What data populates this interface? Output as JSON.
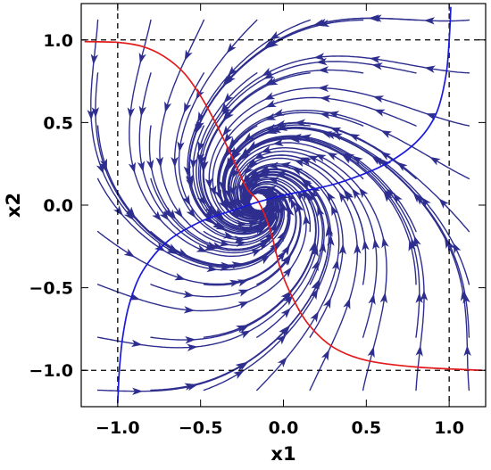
{
  "chart_data": {
    "type": "streamplot",
    "title": "",
    "xlabel": "x1",
    "ylabel": "x2",
    "xlim": [
      -1.22,
      1.22
    ],
    "ylim": [
      -1.22,
      1.22
    ],
    "x_ticks": [
      -1.0,
      -0.5,
      0.0,
      0.5,
      1.0
    ],
    "y_ticks": [
      -1.0,
      -0.5,
      0.0,
      0.5,
      1.0
    ],
    "x_tick_labels": [
      "−1.0",
      "−0.5",
      "0.0",
      "0.5",
      "1.0"
    ],
    "y_tick_labels": [
      "−1.0",
      "−0.5",
      "0.0",
      "0.5",
      "1.0"
    ],
    "grid": false,
    "equilibrium": [
      -0.15,
      0.02
    ],
    "reference_lines": {
      "vertical": [
        -1.0,
        1.0
      ],
      "horizontal": [
        -1.0,
        1.0
      ],
      "style": "dashed",
      "color": "#000000"
    },
    "stream_color": "#2e2e8f",
    "curves": [
      {
        "color": "#e31a1c",
        "points": [
          [
            -1.2,
            0.99
          ],
          [
            -1.0,
            0.985
          ],
          [
            -0.85,
            0.96
          ],
          [
            -0.72,
            0.9
          ],
          [
            -0.6,
            0.8
          ],
          [
            -0.5,
            0.66
          ],
          [
            -0.4,
            0.48
          ],
          [
            -0.3,
            0.27
          ],
          [
            -0.22,
            0.1
          ],
          [
            -0.15,
            0.02
          ],
          [
            -0.08,
            -0.15
          ],
          [
            -0.02,
            -0.38
          ],
          [
            0.05,
            -0.55
          ],
          [
            0.15,
            -0.72
          ],
          [
            0.3,
            -0.86
          ],
          [
            0.5,
            -0.94
          ],
          [
            0.8,
            -0.98
          ],
          [
            1.2,
            -1.0
          ]
        ]
      },
      {
        "color": "#1a1adc",
        "points": [
          [
            -1.0,
            -1.2
          ],
          [
            -0.99,
            -1.0
          ],
          [
            -0.97,
            -0.8
          ],
          [
            -0.93,
            -0.6
          ],
          [
            -0.85,
            -0.4
          ],
          [
            -0.7,
            -0.22
          ],
          [
            -0.5,
            -0.1
          ],
          [
            -0.3,
            -0.03
          ],
          [
            -0.15,
            0.02
          ],
          [
            0.0,
            0.06
          ],
          [
            0.15,
            0.09
          ],
          [
            0.35,
            0.14
          ],
          [
            0.6,
            0.24
          ],
          [
            0.8,
            0.38
          ],
          [
            0.92,
            0.55
          ],
          [
            0.98,
            0.78
          ],
          [
            1.0,
            1.0
          ],
          [
            1.01,
            1.2
          ]
        ]
      }
    ]
  }
}
